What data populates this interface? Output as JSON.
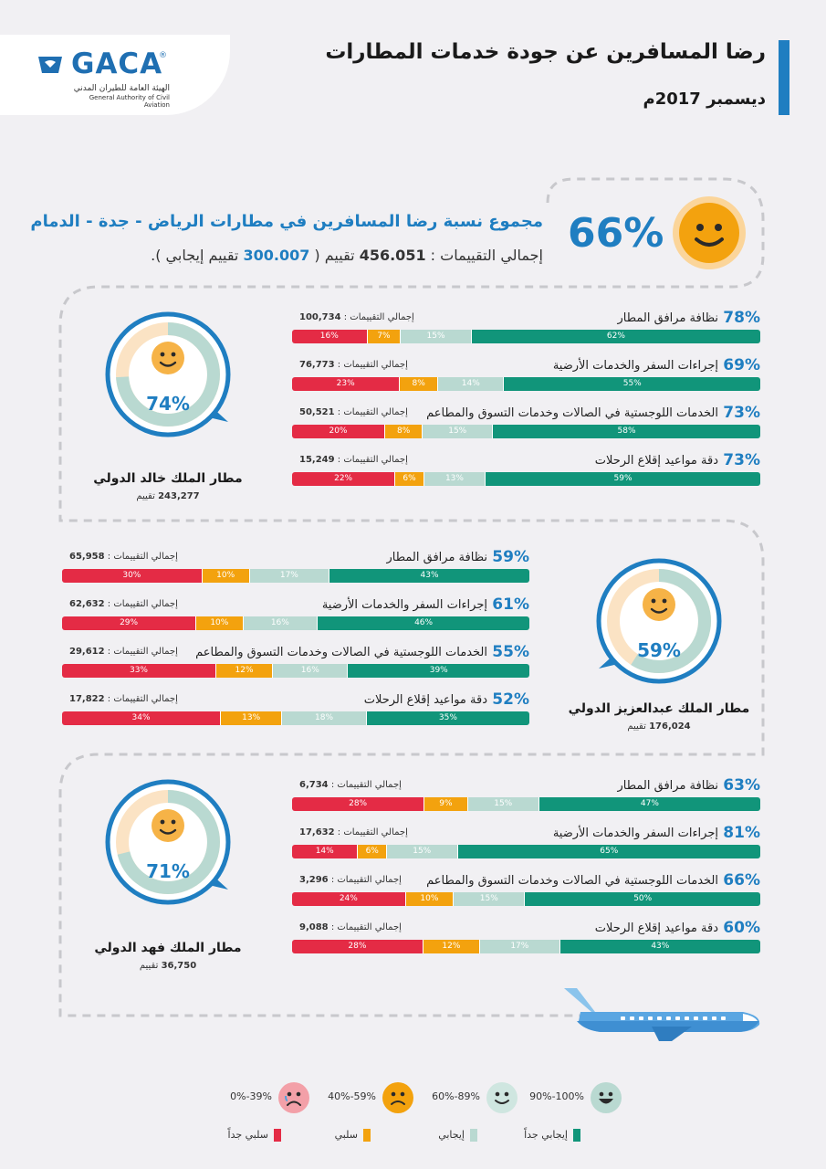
{
  "header": {
    "title": "رضا المسافرين عن جودة خدمات المطارات",
    "date": "ديسمبر 2017م",
    "logo_text": "GACA",
    "logo_reg": "®",
    "logo_arabic": "الهيئة العامة للطيران المدني",
    "logo_english": "General Authority of Civil Aviation"
  },
  "summary": {
    "headline": "مجموع نسبة رضا المسافرين في مطارات الرياض - جدة - الدمام",
    "percent": "66%",
    "sub_prefix": "إجمالي التقييمات :",
    "total": "456.051",
    "sub_mid": " تقييم ( ",
    "positive": "300.007",
    "sub_suffix": " تقييم إيجابي ).",
    "face_color": "#f3a20e"
  },
  "airports": [
    {
      "name": "مطار الملك خالد الدولي",
      "count": "243,277",
      "count_label": "تقييم",
      "percent": "74%",
      "ring_fill": 0.74,
      "metrics": [
        {
          "pct": "78%",
          "name": "نظافة مرافق المطار",
          "total_label": "إجمالي التقييمات :",
          "total": "100,734",
          "segments": [
            {
              "v": 16,
              "t": "16%"
            },
            {
              "v": 7,
              "t": "7%"
            },
            {
              "v": 15,
              "t": "15%"
            },
            {
              "v": 62,
              "t": "62%"
            }
          ]
        },
        {
          "pct": "69%",
          "name": "إجراءات السفر والخدمات الأرضية",
          "total_label": "إجمالي التقييمات :",
          "total": "76,773",
          "segments": [
            {
              "v": 23,
              "t": "23%"
            },
            {
              "v": 8,
              "t": "8%"
            },
            {
              "v": 14,
              "t": "14%"
            },
            {
              "v": 55,
              "t": "55%"
            }
          ]
        },
        {
          "pct": "73%",
          "name": "الخدمات اللوجستية في الصالات وخدمات التسوق والمطاعم",
          "total_label": "إجمالي التقييمات :",
          "total": "50,521",
          "segments": [
            {
              "v": 20,
              "t": "20%"
            },
            {
              "v": 8,
              "t": "8%"
            },
            {
              "v": 15,
              "t": "15%"
            },
            {
              "v": 58,
              "t": "58%"
            }
          ]
        },
        {
          "pct": "73%",
          "name": "دقة مواعيد إقلاع الرحلات",
          "total_label": "إجمالي التقييمات :",
          "total": "15,249",
          "segments": [
            {
              "v": 22,
              "t": "22%"
            },
            {
              "v": 6,
              "t": "6%"
            },
            {
              "v": 13,
              "t": "13%"
            },
            {
              "v": 59,
              "t": "59%"
            }
          ]
        }
      ]
    },
    {
      "name": "مطار الملك عبدالعزيز الدولي",
      "count": "176,024",
      "count_label": "تقييم",
      "percent": "59%",
      "ring_fill": 0.59,
      "metrics": [
        {
          "pct": "59%",
          "name": "نظافة مرافق المطار",
          "total_label": "إجمالي التقييمات :",
          "total": "65,958",
          "segments": [
            {
              "v": 30,
              "t": "30%"
            },
            {
              "v": 10,
              "t": "10%"
            },
            {
              "v": 17,
              "t": "17%"
            },
            {
              "v": 43,
              "t": "43%"
            }
          ]
        },
        {
          "pct": "61%",
          "name": "إجراءات السفر والخدمات الأرضية",
          "total_label": "إجمالي التقييمات :",
          "total": "62,632",
          "segments": [
            {
              "v": 29,
              "t": "29%"
            },
            {
              "v": 10,
              "t": "10%"
            },
            {
              "v": 16,
              "t": "16%"
            },
            {
              "v": 46,
              "t": "46%"
            }
          ]
        },
        {
          "pct": "55%",
          "name": "الخدمات اللوجستية في الصالات وخدمات التسوق والمطاعم",
          "total_label": "إجمالي التقييمات :",
          "total": "29,612",
          "segments": [
            {
              "v": 33,
              "t": "33%"
            },
            {
              "v": 12,
              "t": "12%"
            },
            {
              "v": 16,
              "t": "16%"
            },
            {
              "v": 39,
              "t": "39%"
            }
          ]
        },
        {
          "pct": "52%",
          "name": "دقة مواعيد إقلاع الرحلات",
          "total_label": "إجمالي التقييمات :",
          "total": "17,822",
          "segments": [
            {
              "v": 34,
              "t": "34%"
            },
            {
              "v": 13,
              "t": "13%"
            },
            {
              "v": 18,
              "t": "18%"
            },
            {
              "v": 35,
              "t": "35%"
            }
          ]
        }
      ]
    },
    {
      "name": "مطار الملك فهد الدولي",
      "count": "36,750",
      "count_label": "تقييم",
      "percent": "71%",
      "ring_fill": 0.71,
      "metrics": [
        {
          "pct": "63%",
          "name": "نظافة مرافق المطار",
          "total_label": "إجمالي التقييمات :",
          "total": "6,734",
          "segments": [
            {
              "v": 28,
              "t": "28%"
            },
            {
              "v": 9,
              "t": "9%"
            },
            {
              "v": 15,
              "t": "15%"
            },
            {
              "v": 47,
              "t": "47%"
            }
          ]
        },
        {
          "pct": "81%",
          "name": "إجراءات السفر والخدمات الأرضية",
          "total_label": "إجمالي التقييمات :",
          "total": "17,632",
          "segments": [
            {
              "v": 14,
              "t": "14%"
            },
            {
              "v": 6,
              "t": "6%"
            },
            {
              "v": 15,
              "t": "15%"
            },
            {
              "v": 65,
              "t": "65%"
            }
          ]
        },
        {
          "pct": "66%",
          "name": "الخدمات اللوجستية في الصالات وخدمات التسوق والمطاعم",
          "total_label": "إجمالي التقييمات :",
          "total": "3,296",
          "segments": [
            {
              "v": 24,
              "t": "24%"
            },
            {
              "v": 10,
              "t": "10%"
            },
            {
              "v": 15,
              "t": "15%"
            },
            {
              "v": 50,
              "t": "50%"
            }
          ]
        },
        {
          "pct": "60%",
          "name": "دقة مواعيد إقلاع الرحلات",
          "total_label": "إجمالي التقييمات :",
          "total": "9,088",
          "segments": [
            {
              "v": 28,
              "t": "28%"
            },
            {
              "v": 12,
              "t": "12%"
            },
            {
              "v": 17,
              "t": "17%"
            },
            {
              "v": 43,
              "t": "43%"
            }
          ]
        }
      ]
    }
  ],
  "legend": {
    "faces": [
      {
        "label": "90%-100%",
        "icon": "very-happy-face",
        "color": "#b9d9d1"
      },
      {
        "label": "60%-89%",
        "icon": "smile-face",
        "color": "#cfe6e0"
      },
      {
        "label": "40%-59%",
        "icon": "sad-face",
        "color": "#f3a20e"
      },
      {
        "label": "0%-39%",
        "icon": "crying-face",
        "color": "#f3a0a8"
      }
    ],
    "categories": [
      {
        "label": "إيجابي جداً",
        "color": "#11957a"
      },
      {
        "label": "إيجابي",
        "color": "#b9d9d1"
      },
      {
        "label": "سلبي",
        "color": "#f3a20e"
      },
      {
        "label": "سلبي جداً",
        "color": "#e42b45"
      }
    ]
  },
  "colors": {
    "accent": "#1f7ec1",
    "very_negative": "#e42b45",
    "negative": "#f3a20e",
    "positive": "#b9d9d1",
    "very_positive": "#11957a"
  }
}
